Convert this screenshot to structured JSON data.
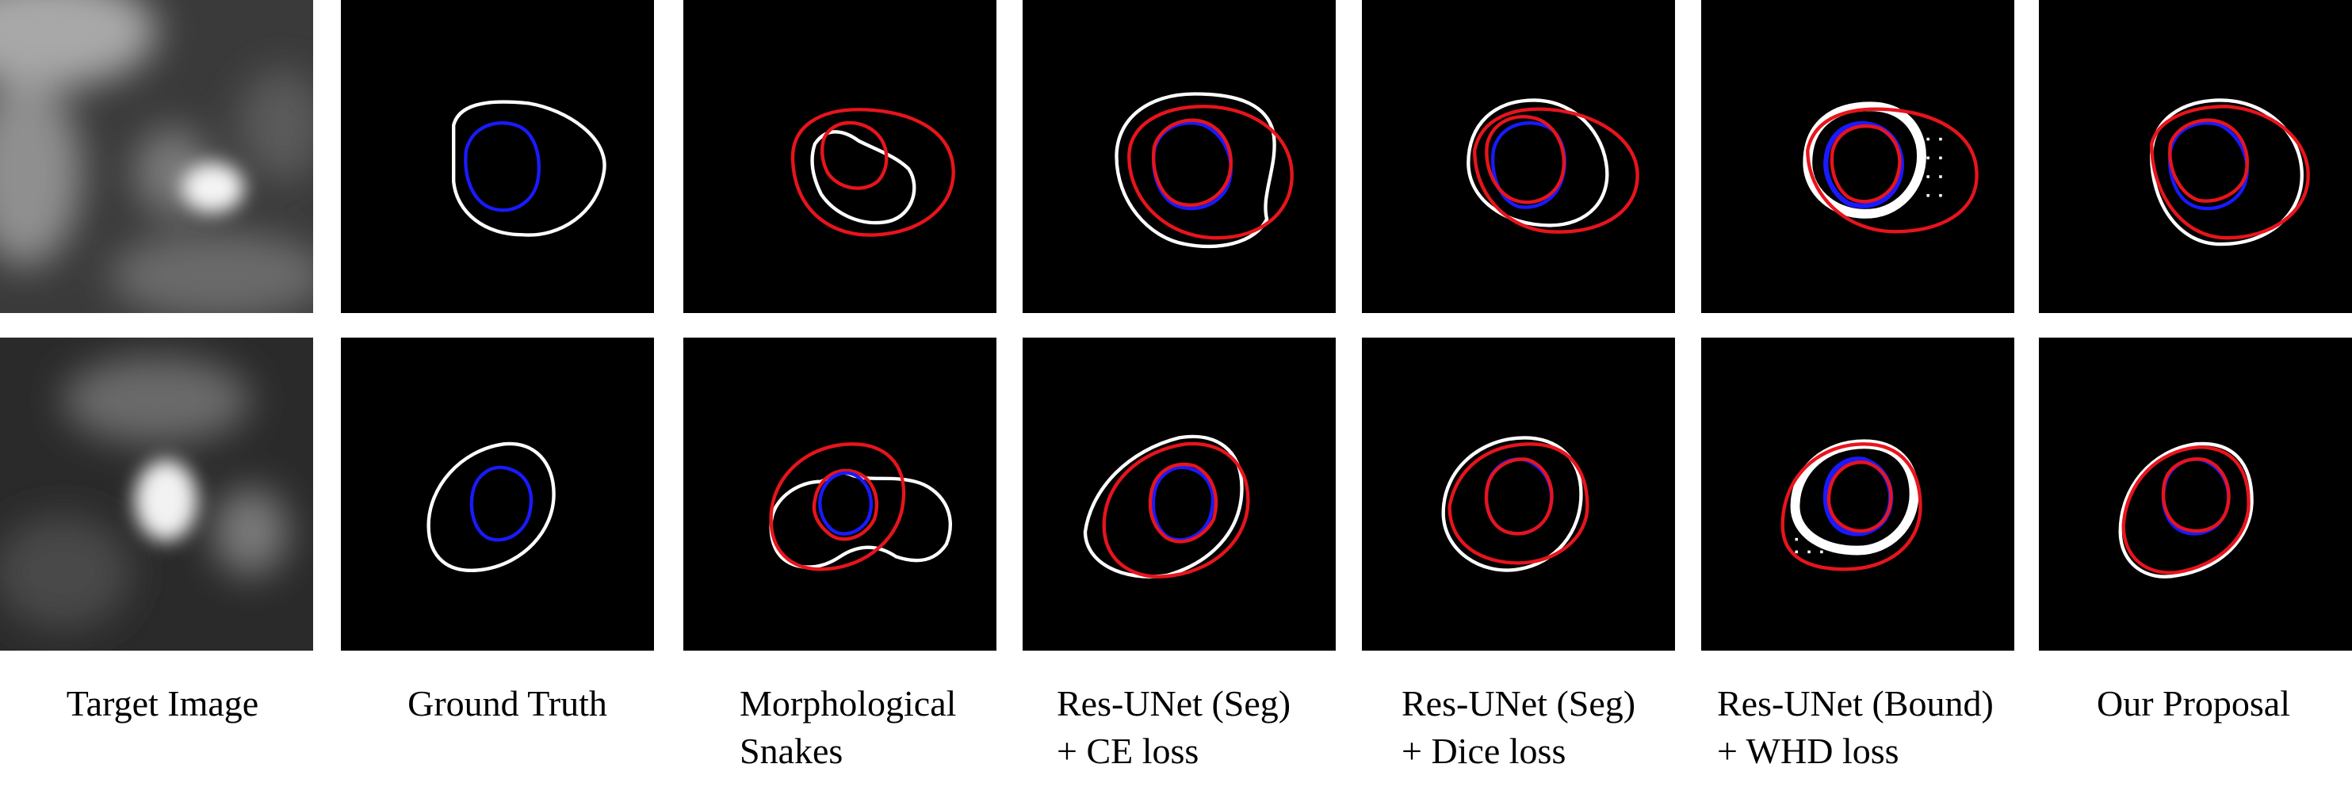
{
  "figure": {
    "columns": [
      {
        "line1": "Target Image",
        "line2": ""
      },
      {
        "line1": "Ground Truth",
        "line2": ""
      },
      {
        "line1": "Morphological",
        "line2": "Snakes"
      },
      {
        "line1": "Res-UNet (Seg)",
        "line2": "+ CE loss"
      },
      {
        "line1": "Res-UNet (Seg)",
        "line2": "+ Dice loss"
      },
      {
        "line1": "Res-UNet (Bound)",
        "line2": "+ WHD loss"
      },
      {
        "line1": "Our Proposal",
        "line2": ""
      }
    ],
    "rows": 2,
    "contour_colors": {
      "ground_truth_outer": "#ffffff",
      "ground_truth_inner": "#1a1aff",
      "prediction": "#e8141c"
    },
    "background_color": "#000000"
  }
}
